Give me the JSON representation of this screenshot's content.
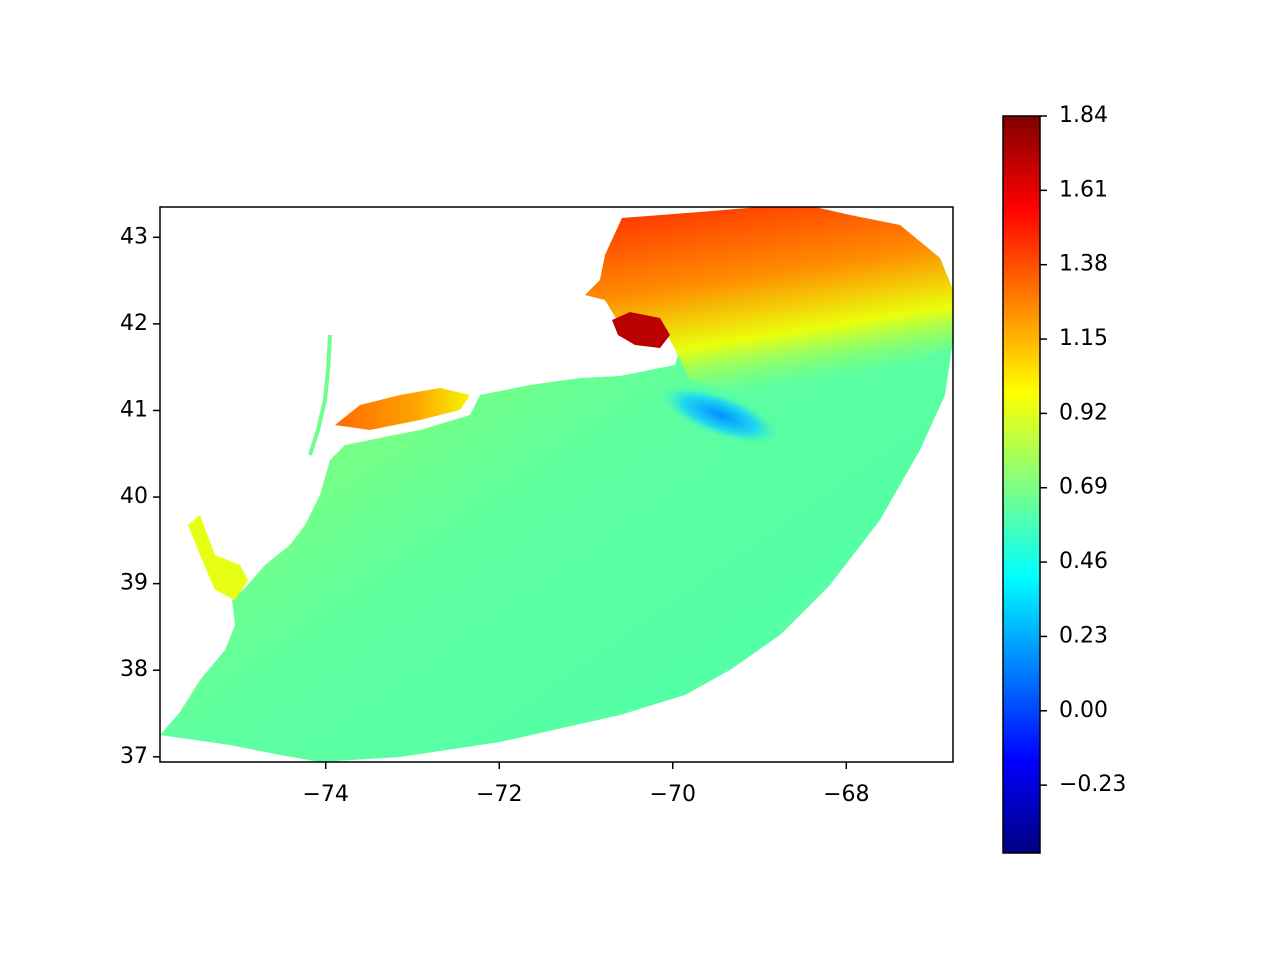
{
  "chart_data": {
    "type": "map",
    "colormap": "jet",
    "xlim": [
      -75.91,
      -66.77
    ],
    "ylim": [
      36.94,
      43.35
    ],
    "xticks": [
      {
        "value": -74,
        "label": "−74"
      },
      {
        "value": -72,
        "label": "−72"
      },
      {
        "value": -70,
        "label": "−70"
      },
      {
        "value": -68,
        "label": "−68"
      }
    ],
    "yticks": [
      37,
      38,
      39,
      40,
      41,
      42,
      43
    ],
    "clim": [
      -0.44,
      1.84
    ],
    "cticks": [
      {
        "value": -0.23,
        "label": "−0.23"
      },
      {
        "value": 0,
        "label": "0.00"
      },
      0.23,
      0.46,
      0.69,
      0.92,
      1.15,
      1.38,
      1.61,
      1.84
    ]
  }
}
